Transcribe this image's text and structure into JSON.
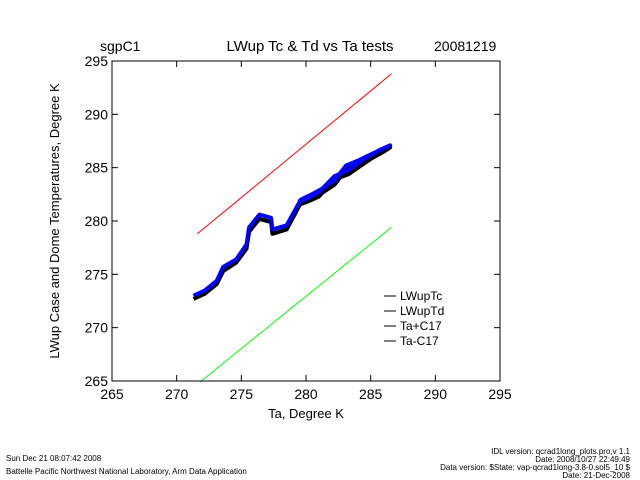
{
  "chart_data": {
    "type": "line",
    "title": "LWup Tc & Td vs Ta tests",
    "site": "sgpC1",
    "date": "20081219",
    "xlabel": "Ta, Degree K",
    "ylabel": "LWup Case and Dome Temperatures, Degree K",
    "xlim": [
      265,
      295
    ],
    "ylim": [
      265,
      295
    ],
    "xticks": [
      "265",
      "270",
      "275",
      "280",
      "285",
      "290",
      "295"
    ],
    "yticks": [
      "265",
      "270",
      "275",
      "280",
      "285",
      "290",
      "295"
    ],
    "legend_position": "bottom-right",
    "series": [
      {
        "name": "LWupTc",
        "color": "#000000",
        "x": [
          271.3,
          272.2,
          273.1,
          273.6,
          274.6,
          275.4,
          275.6,
          276.4,
          277.3,
          277.4,
          278.5,
          279.6,
          280.6,
          281.2,
          282.2,
          283.1,
          284.1,
          285.1,
          286.0,
          286.5,
          285.6,
          284.5,
          283.3,
          282.2,
          281.0,
          280.1,
          279.4
        ],
        "y": [
          272.7,
          273.2,
          274.1,
          275.3,
          276.1,
          277.4,
          279.0,
          280.2,
          279.9,
          278.8,
          279.2,
          281.7,
          282.2,
          282.6,
          283.4,
          284.8,
          285.3,
          285.9,
          286.5,
          286.9,
          286.3,
          285.4,
          284.4,
          283.9,
          282.3,
          281.8,
          281.5
        ]
      },
      {
        "name": "LWupTd",
        "color": "#0000ff",
        "x": [
          271.3,
          272.2,
          273.1,
          273.6,
          274.6,
          275.4,
          275.6,
          276.4,
          277.3,
          277.4,
          278.5,
          279.6,
          280.6,
          281.2,
          282.2,
          283.1,
          284.1,
          285.1,
          286.0,
          286.5,
          285.6,
          284.5,
          283.3,
          282.2,
          281.0,
          280.1,
          279.4
        ],
        "y": [
          273.0,
          273.5,
          274.4,
          275.7,
          276.4,
          277.8,
          279.4,
          280.6,
          280.3,
          279.2,
          279.6,
          282.0,
          282.6,
          283.0,
          283.8,
          285.2,
          285.7,
          286.3,
          286.8,
          287.1,
          286.6,
          285.8,
          284.8,
          284.2,
          282.7,
          282.1,
          281.8
        ]
      },
      {
        "name": "Ta+C17",
        "color": "#ff0000",
        "x": [
          271.6,
          286.6
        ],
        "y": [
          278.8,
          293.8
        ]
      },
      {
        "name": "Ta-C17",
        "color": "#00ff00",
        "x": [
          271.8,
          286.6
        ],
        "y": [
          264.9,
          279.4
        ]
      }
    ]
  },
  "footer": {
    "timestamp": "Sun Dec 21 08:07:42 2008",
    "org": "Battelle Pacific Northwest National Laboratory, Arm Data Application",
    "idl_version": "IDL version: qcrad1long_plots.pro,v 1.1",
    "idl_date": "Date: 2008/10/27 22:49:49",
    "data_version": "Data version: $State: vap-qcrad1long-3.8-0.sol5_10 $",
    "data_date": "Date: 21-Dec-2008"
  }
}
